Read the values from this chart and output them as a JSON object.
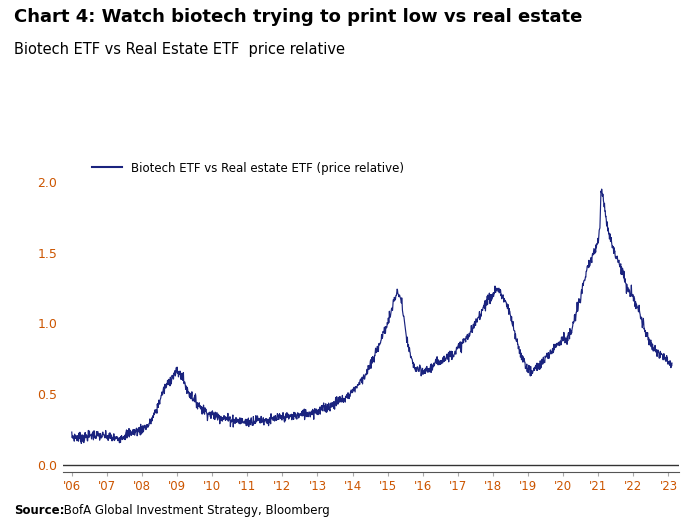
{
  "title": "Chart 4: Watch biotech trying to print low vs real estate",
  "subtitle": "Biotech ETF vs Real Estate ETF  price relative",
  "legend_label": "Biotech ETF vs Real estate ETF (price relative)",
  "source_bold": "Source:",
  "source_rest": " BofA Global Investment Strategy, Bloomberg",
  "line_color": "#1a237e",
  "background_color": "#ffffff",
  "title_fontsize": 13,
  "subtitle_fontsize": 10.5,
  "tick_color": "#cc5500",
  "ylim": [
    -0.05,
    2.2
  ],
  "yticks": [
    0.0,
    0.5,
    1.0,
    1.5,
    2.0
  ],
  "x_tick_labels": [
    "'06",
    "'07",
    "'08",
    "'09",
    "'10",
    "'11",
    "'12",
    "'13",
    "'14",
    "'15",
    "'16",
    "'17",
    "'18",
    "'19",
    "'20",
    "'21",
    "'22",
    "'23"
  ],
  "key_points": [
    [
      2006.0,
      0.2
    ],
    [
      2006.3,
      0.19
    ],
    [
      2006.6,
      0.21
    ],
    [
      2007.0,
      0.2
    ],
    [
      2007.3,
      0.18
    ],
    [
      2007.6,
      0.22
    ],
    [
      2007.9,
      0.24
    ],
    [
      2008.2,
      0.28
    ],
    [
      2008.4,
      0.38
    ],
    [
      2008.6,
      0.52
    ],
    [
      2008.8,
      0.6
    ],
    [
      2009.0,
      0.66
    ],
    [
      2009.15,
      0.62
    ],
    [
      2009.3,
      0.52
    ],
    [
      2009.5,
      0.46
    ],
    [
      2009.7,
      0.4
    ],
    [
      2009.9,
      0.36
    ],
    [
      2010.2,
      0.34
    ],
    [
      2010.5,
      0.32
    ],
    [
      2010.8,
      0.31
    ],
    [
      2011.0,
      0.3
    ],
    [
      2011.3,
      0.32
    ],
    [
      2011.6,
      0.31
    ],
    [
      2011.9,
      0.33
    ],
    [
      2012.2,
      0.34
    ],
    [
      2012.5,
      0.35
    ],
    [
      2012.8,
      0.37
    ],
    [
      2013.0,
      0.38
    ],
    [
      2013.2,
      0.4
    ],
    [
      2013.4,
      0.42
    ],
    [
      2013.6,
      0.45
    ],
    [
      2013.8,
      0.47
    ],
    [
      2014.0,
      0.52
    ],
    [
      2014.2,
      0.58
    ],
    [
      2014.4,
      0.65
    ],
    [
      2014.6,
      0.75
    ],
    [
      2014.8,
      0.88
    ],
    [
      2015.0,
      1.0
    ],
    [
      2015.1,
      1.08
    ],
    [
      2015.2,
      1.18
    ],
    [
      2015.3,
      1.22
    ],
    [
      2015.4,
      1.15
    ],
    [
      2015.5,
      0.95
    ],
    [
      2015.6,
      0.82
    ],
    [
      2015.7,
      0.72
    ],
    [
      2015.8,
      0.68
    ],
    [
      2016.0,
      0.65
    ],
    [
      2016.2,
      0.68
    ],
    [
      2016.4,
      0.72
    ],
    [
      2016.6,
      0.75
    ],
    [
      2016.8,
      0.78
    ],
    [
      2017.0,
      0.82
    ],
    [
      2017.2,
      0.88
    ],
    [
      2017.4,
      0.95
    ],
    [
      2017.6,
      1.05
    ],
    [
      2017.8,
      1.15
    ],
    [
      2018.0,
      1.2
    ],
    [
      2018.1,
      1.25
    ],
    [
      2018.2,
      1.22
    ],
    [
      2018.3,
      1.18
    ],
    [
      2018.4,
      1.12
    ],
    [
      2018.5,
      1.05
    ],
    [
      2018.6,
      0.95
    ],
    [
      2018.7,
      0.85
    ],
    [
      2018.8,
      0.78
    ],
    [
      2018.9,
      0.72
    ],
    [
      2019.0,
      0.68
    ],
    [
      2019.1,
      0.65
    ],
    [
      2019.2,
      0.68
    ],
    [
      2019.4,
      0.72
    ],
    [
      2019.6,
      0.78
    ],
    [
      2019.8,
      0.85
    ],
    [
      2020.0,
      0.9
    ],
    [
      2020.1,
      0.88
    ],
    [
      2020.2,
      0.92
    ],
    [
      2020.3,
      1.0
    ],
    [
      2020.4,
      1.1
    ],
    [
      2020.5,
      1.2
    ],
    [
      2020.6,
      1.3
    ],
    [
      2020.7,
      1.38
    ],
    [
      2020.8,
      1.45
    ],
    [
      2020.9,
      1.52
    ],
    [
      2021.0,
      1.58
    ],
    [
      2021.05,
      1.7
    ],
    [
      2021.08,
      1.92
    ],
    [
      2021.1,
      1.95
    ],
    [
      2021.15,
      1.88
    ],
    [
      2021.2,
      1.78
    ],
    [
      2021.3,
      1.65
    ],
    [
      2021.4,
      1.55
    ],
    [
      2021.5,
      1.48
    ],
    [
      2021.6,
      1.42
    ],
    [
      2021.7,
      1.38
    ],
    [
      2021.75,
      1.3
    ],
    [
      2021.8,
      1.25
    ],
    [
      2021.9,
      1.22
    ],
    [
      2022.0,
      1.18
    ],
    [
      2022.1,
      1.12
    ],
    [
      2022.2,
      1.05
    ],
    [
      2022.3,
      0.98
    ],
    [
      2022.4,
      0.9
    ],
    [
      2022.5,
      0.85
    ],
    [
      2022.6,
      0.82
    ],
    [
      2022.7,
      0.8
    ],
    [
      2022.8,
      0.78
    ],
    [
      2022.9,
      0.75
    ],
    [
      2023.0,
      0.72
    ],
    [
      2023.1,
      0.7
    ]
  ]
}
